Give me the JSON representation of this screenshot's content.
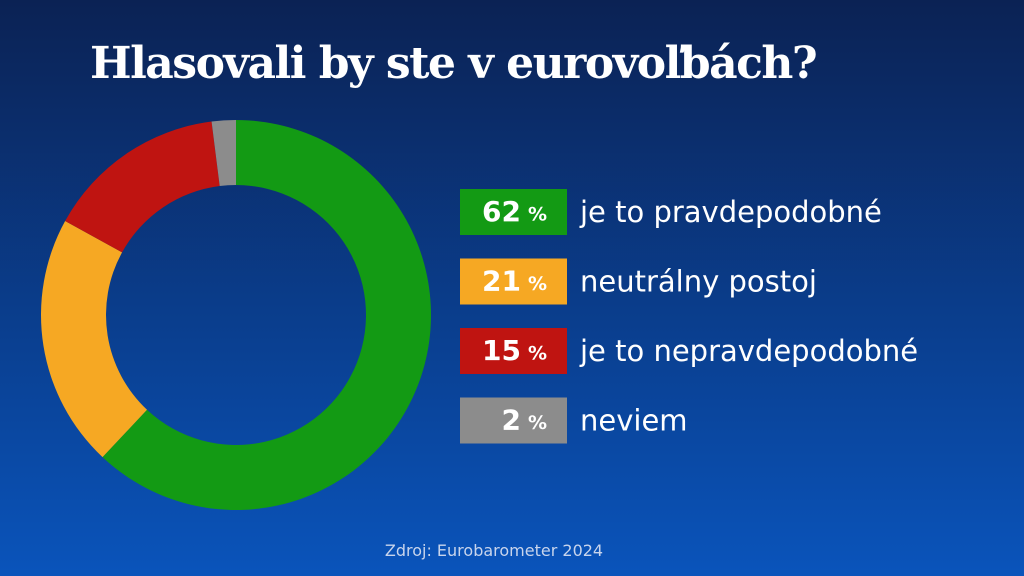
{
  "chart_data": {
    "type": "pie",
    "donut": true,
    "title": "Hlasovali by ste v eurovoľbách?",
    "categories": [
      "je to pravdepodobné",
      "neutrálny postoj",
      "je to nepravdepodobné",
      "neviem"
    ],
    "values": [
      62,
      21,
      15,
      2
    ],
    "unit": "%",
    "colors": [
      "#139a14",
      "#f6a823",
      "#bf1411",
      "#8c8c8c"
    ],
    "source": "Zdroj: Eurobarometer 2024"
  }
}
